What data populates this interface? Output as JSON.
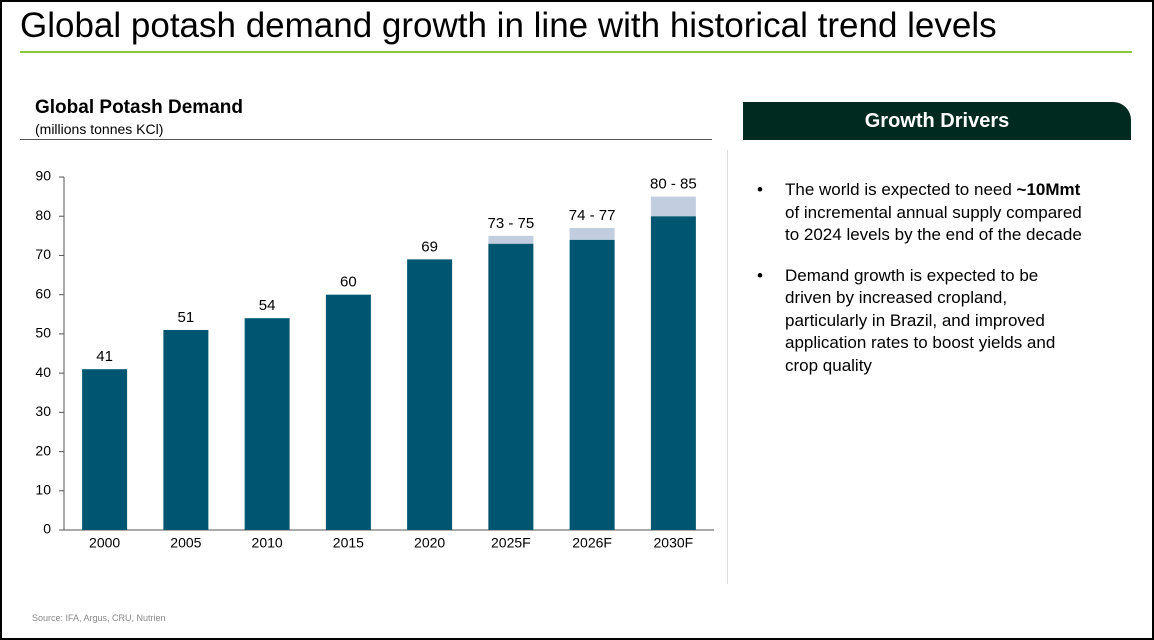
{
  "page_title": "Global potash demand growth in line with historical trend levels",
  "chart_data": {
    "type": "bar",
    "title": "Global Potash Demand",
    "subtitle": "(millions tonnes KCl)",
    "categories": [
      "2000",
      "2005",
      "2010",
      "2015",
      "2020",
      "2025F",
      "2026F",
      "2030F"
    ],
    "series": [
      {
        "color": "#005670",
        "values": [
          41,
          51,
          54,
          60,
          69,
          73,
          74,
          80
        ],
        "value_labels": [
          "41",
          "51",
          "54",
          "60",
          "69",
          "73 - 75",
          "74 - 77",
          "80 - 85"
        ]
      },
      {
        "color": "#c3cde0",
        "values": [
          null,
          null,
          null,
          null,
          null,
          75,
          77,
          85
        ]
      }
    ],
    "ylim": [
      0,
      90
    ],
    "yticks": [
      0,
      10,
      20,
      30,
      40,
      50,
      60,
      70,
      80,
      90
    ],
    "grid": false
  },
  "panel": {
    "title": "Growth Drivers",
    "bullets": [
      {
        "parts": [
          "The world is expected to need ",
          "~10Mmt",
          " of incremental annual supply compared to 2024 levels by the end of the decade"
        ]
      },
      {
        "parts": [
          "Demand growth is expected to be driven by increased cropland, particularly in Brazil, and improved application rates to boost yields and crop quality"
        ]
      }
    ]
  },
  "source": "Source: IFA, Argus, CRU, Nutrien"
}
